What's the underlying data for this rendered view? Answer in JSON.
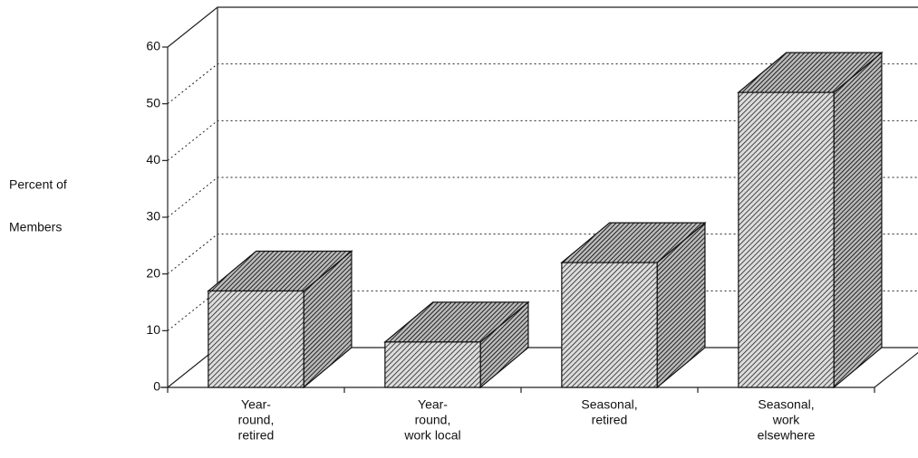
{
  "chart_data": {
    "type": "bar3d",
    "y_label": [
      "Percent of",
      "Members"
    ],
    "categories": [
      [
        "Year-",
        "round,",
        "retired"
      ],
      [
        "Year-",
        "round,",
        "work local"
      ],
      [
        "Seasonal,",
        "retired"
      ],
      [
        "Seasonal,",
        "work",
        "elsewhere"
      ]
    ],
    "values": [
      17,
      8,
      22,
      52
    ],
    "ylim": [
      0,
      60
    ],
    "yticks": [
      0,
      10,
      20,
      30,
      40,
      50,
      60
    ],
    "grid": true,
    "color": "#333333"
  }
}
